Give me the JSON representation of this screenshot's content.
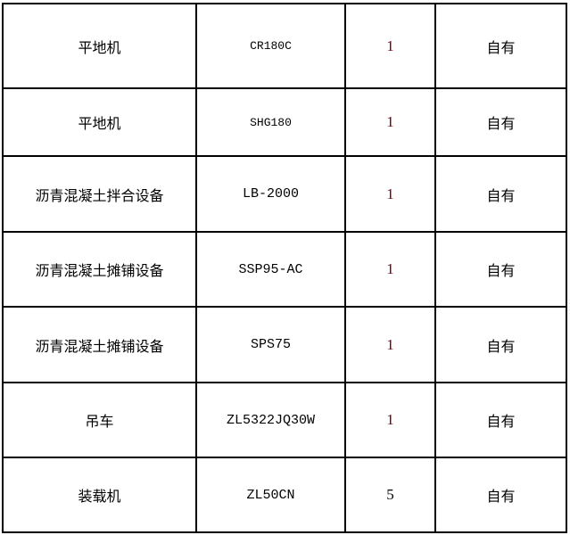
{
  "table": {
    "rows": [
      {
        "name": "平地机",
        "model": "CR180C",
        "quantity": "1",
        "ownership": "自有"
      },
      {
        "name": "平地机",
        "model": "SHG180",
        "quantity": "1",
        "ownership": "自有"
      },
      {
        "name": "沥青混凝土拌合设备",
        "model": "LB-2000",
        "quantity": "1",
        "ownership": "自有"
      },
      {
        "name": "沥青混凝土摊铺设备",
        "model": "SSP95-AC",
        "quantity": "1",
        "ownership": "自有"
      },
      {
        "name": "沥青混凝土摊铺设备",
        "model": "SPS75",
        "quantity": "1",
        "ownership": "自有"
      },
      {
        "name": "吊车",
        "model": "ZL5322JQ30W",
        "quantity": "1",
        "ownership": "自有"
      },
      {
        "name": "装载机",
        "model": "ZL50CN",
        "quantity": "5",
        "ownership": "自有"
      }
    ]
  }
}
